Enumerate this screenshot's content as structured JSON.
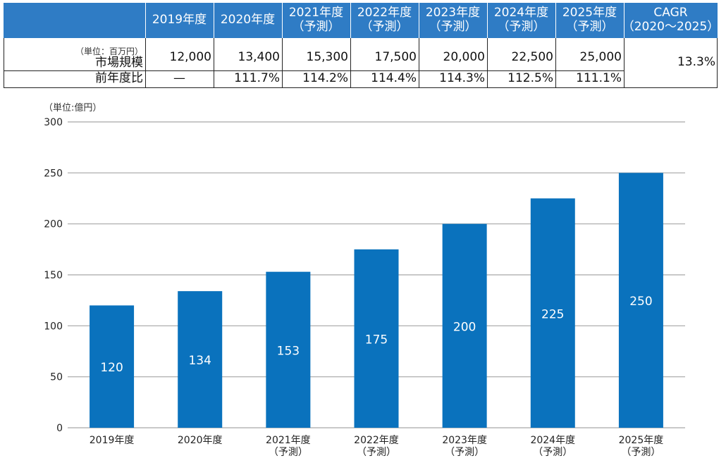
{
  "table": {
    "headers": [
      [
        "2019年度"
      ],
      [
        "2020年度"
      ],
      [
        "2021年度",
        "（予測）"
      ],
      [
        "2022年度",
        "（予測）"
      ],
      [
        "2023年度",
        "（予測）"
      ],
      [
        "2024年度",
        "（予測）"
      ],
      [
        "2025年度",
        "（予測）"
      ],
      [
        "CAGR",
        "（2020～2025）"
      ]
    ],
    "unit_note": "（単位：百万円）",
    "row1_label": "市場規模",
    "row1_values": [
      "12,000",
      "13,400",
      "15,300",
      "17,500",
      "20,000",
      "22,500",
      "25,000"
    ],
    "row2_label": "前年度比",
    "row2_values": [
      "—",
      "111.7%",
      "114.2%",
      "114.4%",
      "114.3%",
      "112.5%",
      "111.1%"
    ],
    "cagr": "13.3%"
  },
  "chart_data": {
    "type": "bar",
    "unit_label": "（単位:億円）",
    "categories": [
      [
        "2019年度"
      ],
      [
        "2020年度"
      ],
      [
        "2021年度",
        "（予測）"
      ],
      [
        "2022年度",
        "（予測）"
      ],
      [
        "2023年度",
        "（予測）"
      ],
      [
        "2024年度",
        "（予測）"
      ],
      [
        "2025年度",
        "（予測）"
      ]
    ],
    "values": [
      120,
      134,
      153,
      175,
      200,
      225,
      250
    ],
    "ylim": [
      0,
      300
    ],
    "yticks": [
      0,
      50,
      100,
      150,
      200,
      250,
      300
    ],
    "grid": true,
    "bar_color": "#0a72bd",
    "grid_color": "#a6a6a6"
  }
}
